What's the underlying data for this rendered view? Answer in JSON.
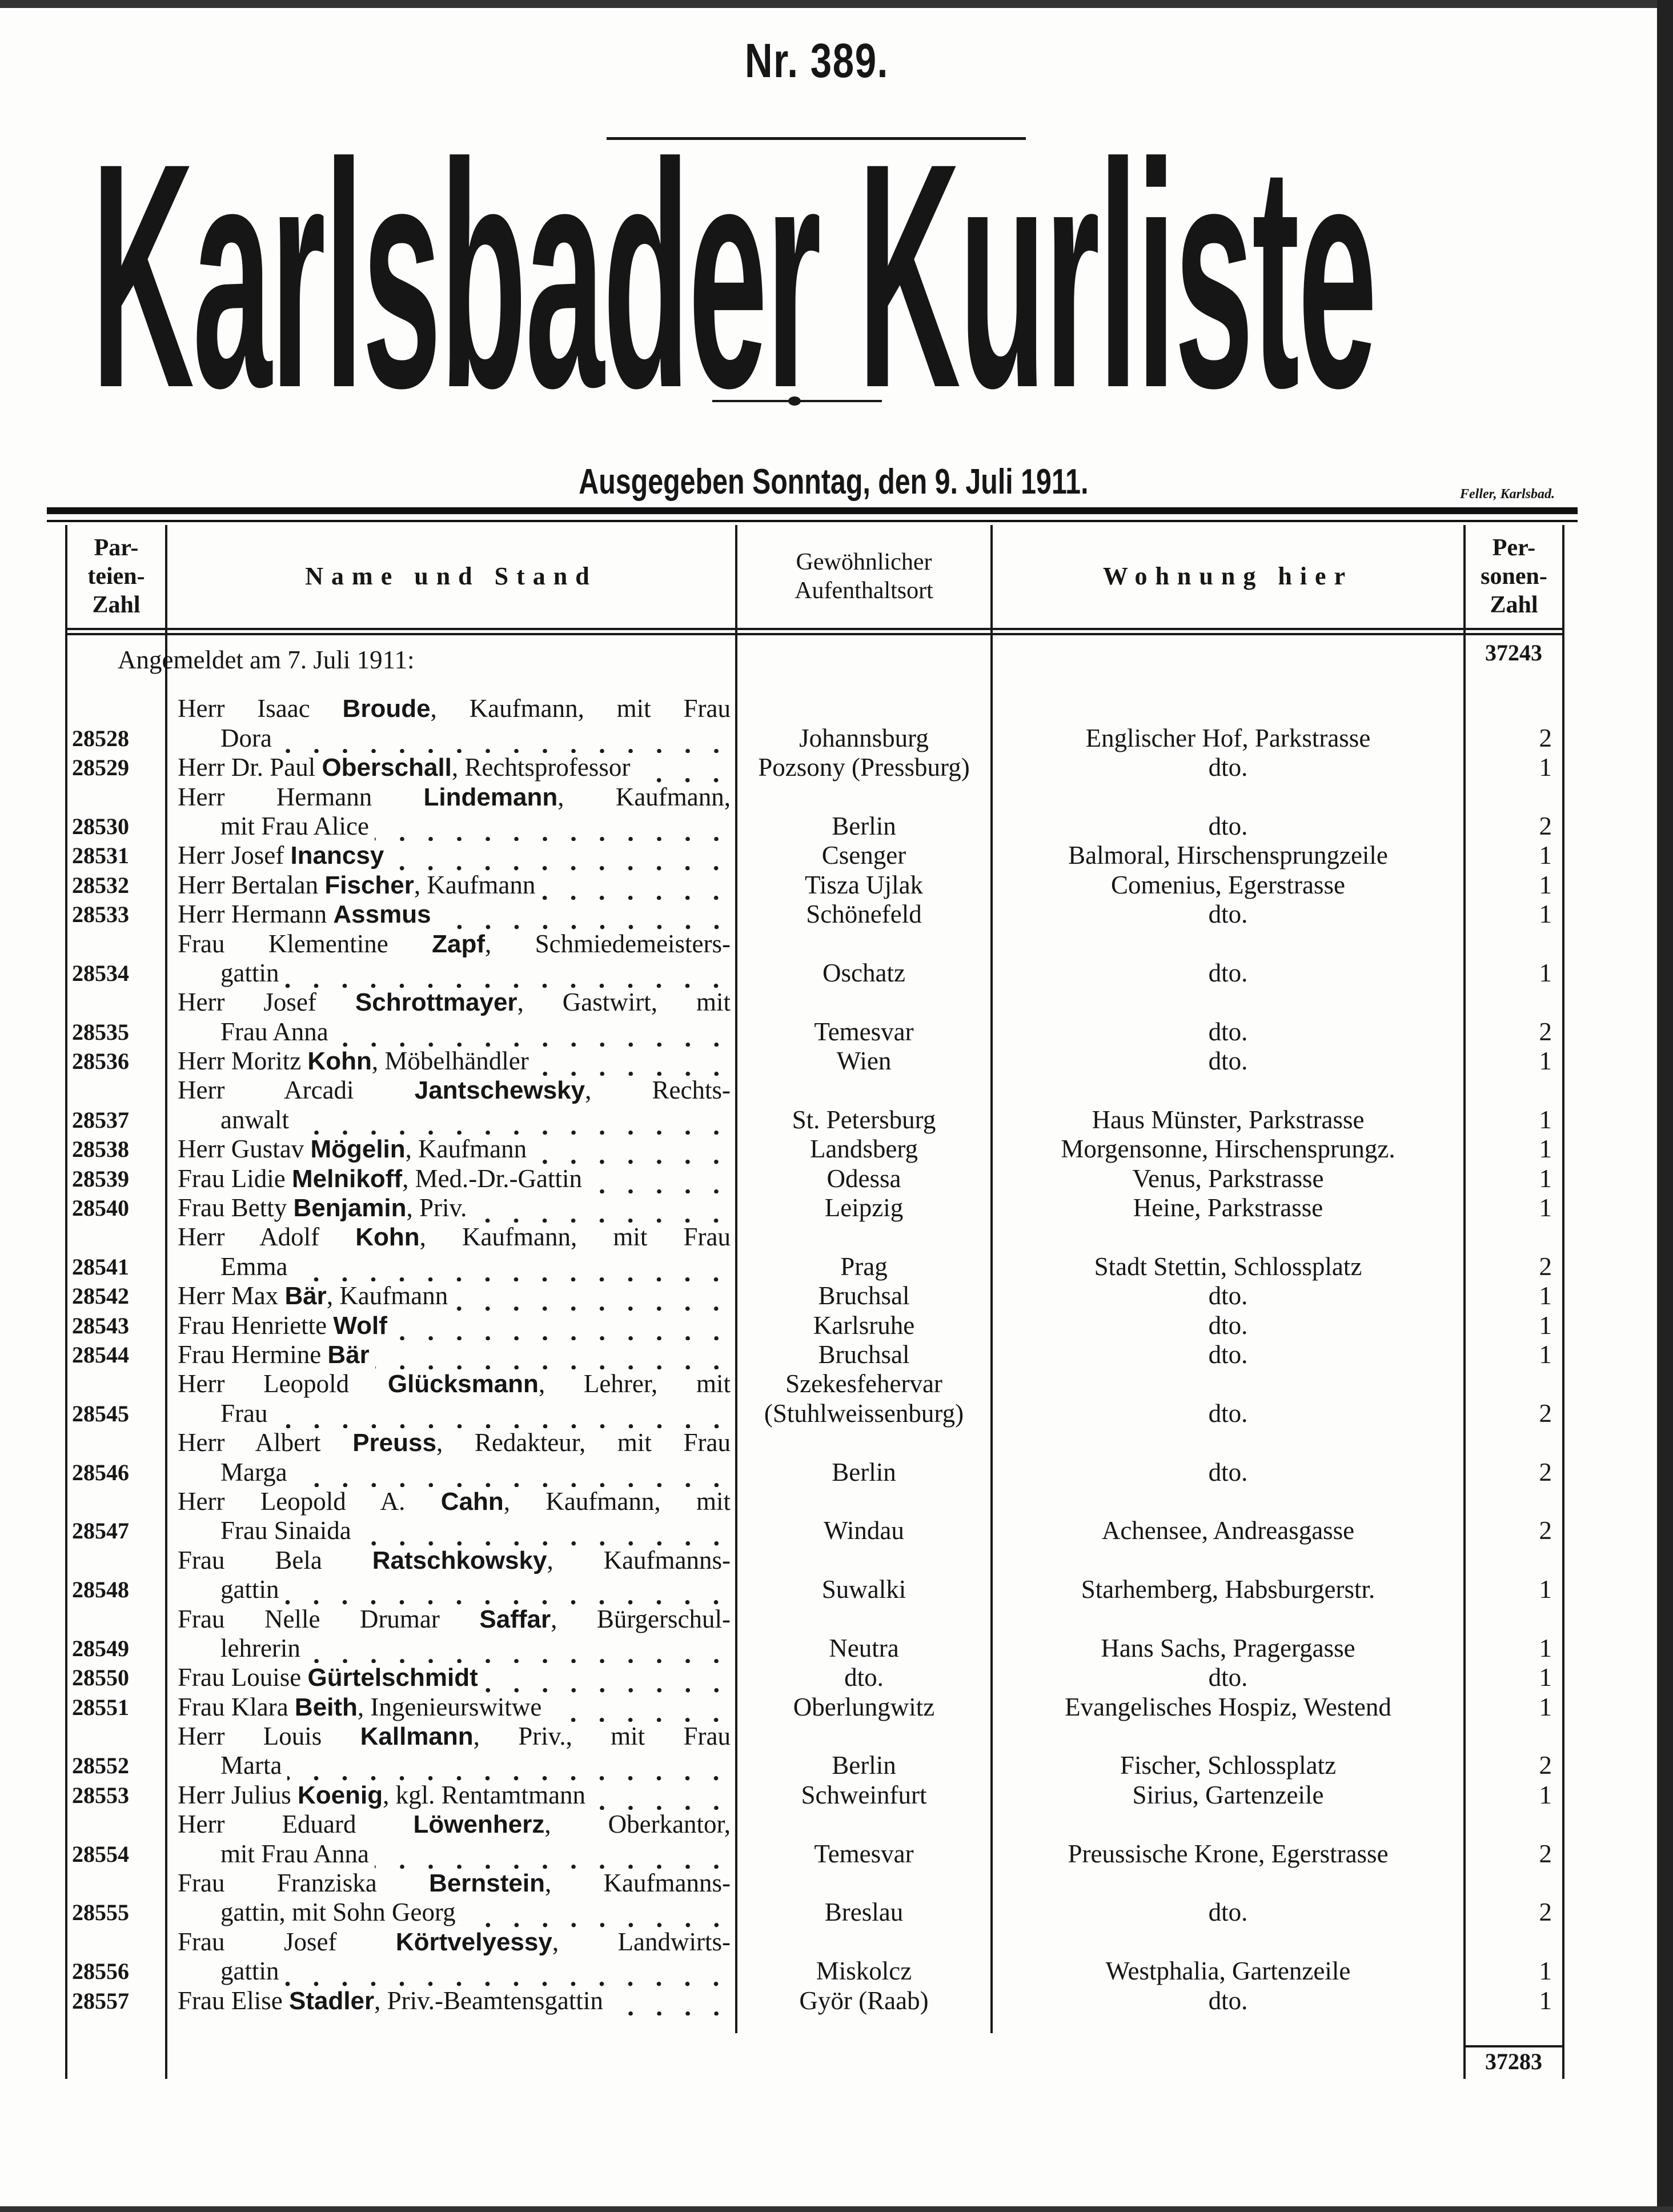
{
  "masthead": {
    "number": "Nr. 389.",
    "title": "Karlsbader Kurliste",
    "issued": "Ausgegeben Sonntag, den 9. Juli 1911.",
    "printer": "Feller, Karlsbad."
  },
  "headers": {
    "nr": [
      "Par-",
      "teien-",
      "Zahl"
    ],
    "name": "Name und Stand",
    "place": [
      "Gewöhnlicher",
      "Aufenthaltsort"
    ],
    "address": "Wohnung hier",
    "persons": [
      "Per-",
      "sonen-",
      "Zahl"
    ]
  },
  "registered": "Angemeldet am 7. Juli 1911:",
  "total_start": "37243",
  "total_end": "37283",
  "entries": [
    {
      "nr": "28528",
      "pre": "Herr Isaac ",
      "sur": "Broude",
      "post": ", Kaufmann, mit Frau",
      "line2": "Dora",
      "place": [
        "Johannsburg"
      ],
      "address": "Englischer Hof, Parkstrasse",
      "persons": "2"
    },
    {
      "nr": "28529",
      "pre": "Herr Dr. Paul ",
      "sur": "Oberschall",
      "post": ", Rechtsprofessor",
      "line2": null,
      "place": [
        "Pozsony (Pressburg)"
      ],
      "address": "dto.",
      "persons": "1"
    },
    {
      "nr": "28530",
      "pre": "Herr Hermann ",
      "sur": "Lindemann",
      "post": ", Kaufmann,",
      "line2": "mit Frau Alice",
      "place": [
        "Berlin"
      ],
      "address": "dto.",
      "persons": "2"
    },
    {
      "nr": "28531",
      "pre": "Herr Josef ",
      "sur": "Inancsy",
      "post": "",
      "line2": null,
      "place": [
        "Csenger"
      ],
      "address": "Balmoral, Hirschensprungzeile",
      "persons": "1"
    },
    {
      "nr": "28532",
      "pre": "Herr Bertalan ",
      "sur": "Fischer",
      "post": ", Kaufmann",
      "line2": null,
      "place": [
        "Tisza Ujlak"
      ],
      "address": "Comenius, Egerstrasse",
      "persons": "1"
    },
    {
      "nr": "28533",
      "pre": "Herr Hermann ",
      "sur": "Assmus",
      "post": "",
      "line2": null,
      "place": [
        "Schönefeld"
      ],
      "address": "dto.",
      "persons": "1"
    },
    {
      "nr": "28534",
      "pre": "Frau Klementine ",
      "sur": "Zapf",
      "post": ", Schmiedemeisters-",
      "line2": "gattin",
      "place": [
        "Oschatz"
      ],
      "address": "dto.",
      "persons": "1"
    },
    {
      "nr": "28535",
      "pre": "Herr Josef ",
      "sur": "Schrottmayer",
      "post": ", Gastwirt, mit",
      "line2": "Frau Anna",
      "place": [
        "Temesvar"
      ],
      "address": "dto.",
      "persons": "2"
    },
    {
      "nr": "28536",
      "pre": "Herr Moritz ",
      "sur": "Kohn",
      "post": ", Möbelhändler",
      "line2": null,
      "place": [
        "Wien"
      ],
      "address": "dto.",
      "persons": "1"
    },
    {
      "nr": "28537",
      "pre": "Herr Arcadi ",
      "sur": "Jantschewsky",
      "post": ", Rechts-",
      "line2": "anwalt",
      "place": [
        "St. Petersburg"
      ],
      "address": "Haus Münster, Parkstrasse",
      "persons": "1"
    },
    {
      "nr": "28538",
      "pre": "Herr Gustav ",
      "sur": "Mögelin",
      "post": ", Kaufmann",
      "line2": null,
      "place": [
        "Landsberg"
      ],
      "address": "Morgensonne, Hirschensprungz.",
      "persons": "1"
    },
    {
      "nr": "28539",
      "pre": "Frau Lidie ",
      "sur": "Melnikoff",
      "post": ", Med.-Dr.-Gattin",
      "line2": null,
      "place": [
        "Odessa"
      ],
      "address": "Venus, Parkstrasse",
      "persons": "1"
    },
    {
      "nr": "28540",
      "pre": "Frau Betty ",
      "sur": "Benjamin",
      "post": ", Priv.",
      "line2": null,
      "place": [
        "Leipzig"
      ],
      "address": "Heine, Parkstrasse",
      "persons": "1"
    },
    {
      "nr": "28541",
      "pre": "Herr Adolf ",
      "sur": "Kohn",
      "post": ", Kaufmann, mit Frau",
      "line2": "Emma",
      "place": [
        "Prag"
      ],
      "address": "Stadt Stettin, Schlossplatz",
      "persons": "2"
    },
    {
      "nr": "28542",
      "pre": "Herr Max ",
      "sur": "Bär",
      "post": ", Kaufmann",
      "line2": null,
      "place": [
        "Bruchsal"
      ],
      "address": "dto.",
      "persons": "1"
    },
    {
      "nr": "28543",
      "pre": "Frau Henriette ",
      "sur": "Wolf",
      "post": "",
      "line2": null,
      "place": [
        "Karlsruhe"
      ],
      "address": "dto.",
      "persons": "1"
    },
    {
      "nr": "28544",
      "pre": "Frau Hermine ",
      "sur": "Bär",
      "post": "",
      "line2": null,
      "place": [
        "Bruchsal"
      ],
      "address": "dto.",
      "persons": "1"
    },
    {
      "nr": "28545",
      "pre": "Herr Leopold ",
      "sur": "Glücksmann",
      "post": ", Lehrer, mit",
      "line2": "Frau",
      "place": [
        "Szekesfehervar",
        "(Stuhlweissenburg)"
      ],
      "address": "dto.",
      "persons": "2"
    },
    {
      "nr": "28546",
      "pre": "Herr Albert ",
      "sur": "Preuss",
      "post": ", Redakteur, mit Frau",
      "line2": "Marga",
      "place": [
        "Berlin"
      ],
      "address": "dto.",
      "persons": "2"
    },
    {
      "nr": "28547",
      "pre": "Herr Leopold A. ",
      "sur": "Cahn",
      "post": ", Kaufmann, mit",
      "line2": "Frau Sinaida",
      "place": [
        "Windau"
      ],
      "address": "Achensee, Andreasgasse",
      "persons": "2"
    },
    {
      "nr": "28548",
      "pre": "Frau Bela ",
      "sur": "Ratschkowsky",
      "post": ", Kaufmanns-",
      "line2": "gattin",
      "place": [
        "Suwalki"
      ],
      "address": "Starhemberg, Habsburgerstr.",
      "persons": "1"
    },
    {
      "nr": "28549",
      "pre": "Frau Nelle Drumar ",
      "sur": "Saffar",
      "post": ", Bürgerschul-",
      "line2": "lehrerin",
      "place": [
        "Neutra"
      ],
      "address": "Hans Sachs, Pragergasse",
      "persons": "1"
    },
    {
      "nr": "28550",
      "pre": "Frau Louise ",
      "sur": "Gürtelschmidt",
      "post": "",
      "line2": null,
      "place": [
        "dto."
      ],
      "address": "dto.",
      "persons": "1"
    },
    {
      "nr": "28551",
      "pre": "Frau Klara ",
      "sur": "Beith",
      "post": ", Ingenieurswitwe",
      "line2": null,
      "place": [
        "Oberlungwitz"
      ],
      "address": "Evangelisches Hospiz, Westend",
      "persons": "1"
    },
    {
      "nr": "28552",
      "pre": "Herr Louis ",
      "sur": "Kallmann",
      "post": ", Priv., mit Frau",
      "line2": "Marta",
      "place": [
        "Berlin"
      ],
      "address": "Fischer, Schlossplatz",
      "persons": "2"
    },
    {
      "nr": "28553",
      "pre": "Herr Julius ",
      "sur": "Koenig",
      "post": ", kgl. Rentamtmann",
      "line2": null,
      "place": [
        "Schweinfurt"
      ],
      "address": "Sirius, Gartenzeile",
      "persons": "1"
    },
    {
      "nr": "28554",
      "pre": "Herr Eduard ",
      "sur": "Löwenherz",
      "post": ", Oberkantor,",
      "line2": "mit Frau Anna",
      "place": [
        "Temesvar"
      ],
      "address": "Preussische Krone, Egerstrasse",
      "persons": "2"
    },
    {
      "nr": "28555",
      "pre": "Frau Franziska ",
      "sur": "Bernstein",
      "post": ", Kaufmanns-",
      "line2": "gattin, mit Sohn Georg",
      "place": [
        "Breslau"
      ],
      "address": "dto.",
      "persons": "2"
    },
    {
      "nr": "28556",
      "pre": "Frau Josef ",
      "sur": "Körtvelyessy",
      "post": ", Landwirts-",
      "line2": "gattin",
      "place": [
        "Miskolcz"
      ],
      "address": "Westphalia, Gartenzeile",
      "persons": "1"
    },
    {
      "nr": "28557",
      "pre": "Frau Elise ",
      "sur": "Stadler",
      "post": ", Priv.-Beamtensgattin",
      "line2": null,
      "place": [
        "Györ (Raab)"
      ],
      "address": "dto.",
      "persons": "1"
    }
  ]
}
